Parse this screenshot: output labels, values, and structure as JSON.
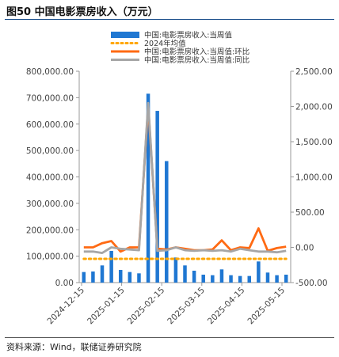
{
  "figure": {
    "title": "图50 中国电影票房收入（万元）",
    "source": "资料来源：Wind，联储证券研究院"
  },
  "colors": {
    "bar": "#1f77d2",
    "avg": "#ffa600",
    "wow": "#ff6a13",
    "yoy": "#a6a6a6",
    "title_rule": "#1a4f8b"
  },
  "chart_data": {
    "type": "bar",
    "x_tick_labels": [
      "2024-12-15",
      "2025-01-15",
      "2025-02-15",
      "2025-03-15",
      "2025-04-15",
      "2025-05-15"
    ],
    "left_axis": {
      "ticks": [
        "0.00",
        "100,000.00",
        "200,000.00",
        "300,000.00",
        "400,000.00",
        "500,000.00",
        "600,000.00",
        "700,000.00",
        "800,000.00"
      ],
      "ylim": [
        0,
        800000
      ]
    },
    "right_axis": {
      "ticks": [
        "-500.00",
        "0.00",
        "500.00",
        "1,000.00",
        "1,500.00",
        "2,000.00",
        "2,500.00"
      ],
      "ylim": [
        -500,
        2500
      ]
    },
    "series": [
      {
        "name": "中国:电影票房收入:当周值",
        "type": "bar",
        "axis": "left",
        "values": [
          40000,
          42000,
          65000,
          120000,
          48000,
          40000,
          35000,
          715000,
          650000,
          460000,
          95000,
          65000,
          45000,
          30000,
          28000,
          50000,
          28000,
          25000,
          25000,
          80000,
          38000,
          28000,
          30000
        ]
      },
      {
        "name": "2024年均值",
        "type": "line",
        "axis": "left",
        "style": "dotted",
        "values": [
          90000,
          90000,
          90000,
          90000,
          90000,
          90000,
          90000,
          90000,
          90000,
          90000,
          90000,
          90000,
          90000,
          90000,
          90000,
          90000,
          90000,
          90000,
          90000,
          90000,
          90000,
          90000,
          90000
        ]
      },
      {
        "name": "中国:电影票房收入:当周值:环比",
        "type": "line",
        "axis": "right",
        "values": [
          0,
          0,
          60,
          90,
          -60,
          0,
          0,
          2000,
          -20,
          -30,
          0,
          -20,
          -40,
          -40,
          -30,
          100,
          -40,
          0,
          -10,
          270,
          -50,
          -10,
          10
        ]
      },
      {
        "name": "中国:电影票房收入:当周值:同比",
        "type": "line",
        "axis": "right",
        "values": [
          -60,
          -60,
          -80,
          0,
          -20,
          -30,
          -40,
          2050,
          -50,
          -40,
          0,
          -40,
          -50,
          -40,
          -50,
          -40,
          -60,
          -20,
          -40,
          -60,
          -60,
          -70,
          -50
        ]
      }
    ]
  }
}
